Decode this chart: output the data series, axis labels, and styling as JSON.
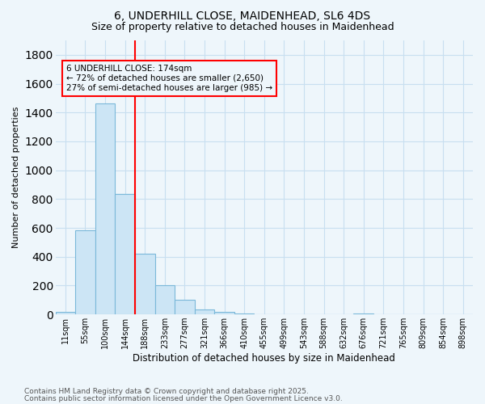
{
  "title1": "6, UNDERHILL CLOSE, MAIDENHEAD, SL6 4DS",
  "title2": "Size of property relative to detached houses in Maidenhead",
  "xlabel": "Distribution of detached houses by size in Maidenhead",
  "ylabel": "Number of detached properties",
  "categories": [
    "11sqm",
    "55sqm",
    "100sqm",
    "144sqm",
    "188sqm",
    "233sqm",
    "277sqm",
    "321sqm",
    "366sqm",
    "410sqm",
    "455sqm",
    "499sqm",
    "543sqm",
    "588sqm",
    "632sqm",
    "676sqm",
    "721sqm",
    "765sqm",
    "809sqm",
    "854sqm",
    "898sqm"
  ],
  "values": [
    15,
    585,
    1465,
    835,
    420,
    200,
    100,
    35,
    20,
    5,
    0,
    0,
    0,
    0,
    0,
    5,
    0,
    0,
    0,
    0,
    0
  ],
  "bar_color": "#cce5f5",
  "bar_edge_color": "#7ab8d9",
  "background_color": "#eef6fb",
  "grid_color": "#c8dff0",
  "vline_index": 3.5,
  "vline_color": "red",
  "annotation_text": "6 UNDERHILL CLOSE: 174sqm\n← 72% of detached houses are smaller (2,650)\n27% of semi-detached houses are larger (985) →",
  "footer1": "Contains HM Land Registry data © Crown copyright and database right 2025.",
  "footer2": "Contains public sector information licensed under the Open Government Licence v3.0.",
  "ylim": [
    0,
    1900
  ],
  "yticks": [
    0,
    200,
    400,
    600,
    800,
    1000,
    1200,
    1400,
    1600,
    1800
  ]
}
